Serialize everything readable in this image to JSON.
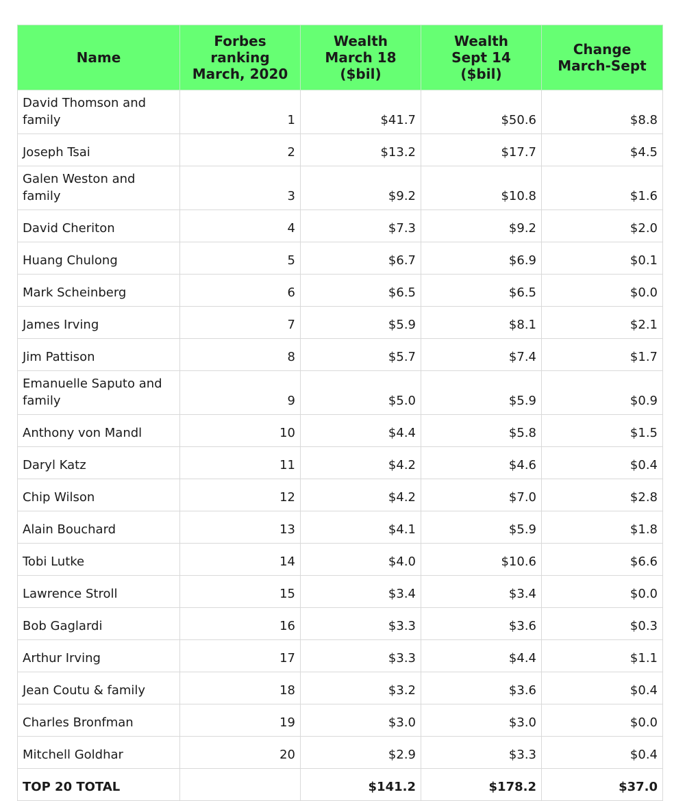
{
  "headers": [
    "Name",
    "Forbes ranking\nMarch, 2020",
    "Wealth\nMarch 18\n($bil)",
    "Wealth\nSept 14\n($bil)",
    "Change\nMarch-Sept"
  ],
  "rows": [
    {
      "name": "David Thomson and family",
      "rank": "1",
      "march": "$41.7",
      "sept": "$50.6",
      "change": "$8.8",
      "tall": true
    },
    {
      "name": "Joseph Tsai",
      "rank": "2",
      "march": "$13.2",
      "sept": "$17.7",
      "change": "$4.5"
    },
    {
      "name": "Galen Weston and family",
      "rank": "3",
      "march": "$9.2",
      "sept": "$10.8",
      "change": "$1.6",
      "tall": true
    },
    {
      "name": "David Cheriton",
      "rank": "4",
      "march": "$7.3",
      "sept": "$9.2",
      "change": "$2.0"
    },
    {
      "name": "Huang Chulong",
      "rank": "5",
      "march": "$6.7",
      "sept": "$6.9",
      "change": "$0.1"
    },
    {
      "name": "Mark Scheinberg",
      "rank": "6",
      "march": "$6.5",
      "sept": "$6.5",
      "change": "$0.0"
    },
    {
      "name": "James Irving",
      "rank": "7",
      "march": "$5.9",
      "sept": "$8.1",
      "change": "$2.1"
    },
    {
      "name": "Jim Pattison",
      "rank": "8",
      "march": "$5.7",
      "sept": "$7.4",
      "change": "$1.7"
    },
    {
      "name": "Emanuelle Saputo and family",
      "rank": "9",
      "march": "$5.0",
      "sept": "$5.9",
      "change": "$0.9",
      "tall": true
    },
    {
      "name": "Anthony von Mandl",
      "rank": "10",
      "march": "$4.4",
      "sept": "$5.8",
      "change": "$1.5"
    },
    {
      "name": "Daryl Katz",
      "rank": "11",
      "march": "$4.2",
      "sept": "$4.6",
      "change": "$0.4"
    },
    {
      "name": "Chip Wilson",
      "rank": "12",
      "march": "$4.2",
      "sept": "$7.0",
      "change": "$2.8"
    },
    {
      "name": "Alain Bouchard",
      "rank": "13",
      "march": "$4.1",
      "sept": "$5.9",
      "change": "$1.8"
    },
    {
      "name": "Tobi Lutke",
      "rank": "14",
      "march": "$4.0",
      "sept": "$10.6",
      "change": "$6.6"
    },
    {
      "name": "Lawrence Stroll",
      "rank": "15",
      "march": "$3.4",
      "sept": "$3.4",
      "change": "$0.0"
    },
    {
      "name": "Bob Gaglardi",
      "rank": "16",
      "march": "$3.3",
      "sept": "$3.6",
      "change": "$0.3"
    },
    {
      "name": "Arthur Irving",
      "rank": "17",
      "march": "$3.3",
      "sept": "$4.4",
      "change": "$1.1"
    },
    {
      "name": "Jean Coutu & family",
      "rank": "18",
      "march": "$3.2",
      "sept": "$3.6",
      "change": "$0.4"
    },
    {
      "name": "Charles Bronfman",
      "rank": "19",
      "march": "$3.0",
      "sept": "$3.0",
      "change": "$0.0"
    },
    {
      "name": "Mitchell Goldhar",
      "rank": "20",
      "march": "$2.9",
      "sept": "$3.3",
      "change": "$0.4"
    }
  ],
  "total": {
    "name": "TOP 20 TOTAL",
    "rank": "",
    "march": "$141.2",
    "sept": "$178.2",
    "change": "$37.0"
  },
  "colors": {
    "header_bg": "#66ff73",
    "grid": "#d9d9d9"
  }
}
